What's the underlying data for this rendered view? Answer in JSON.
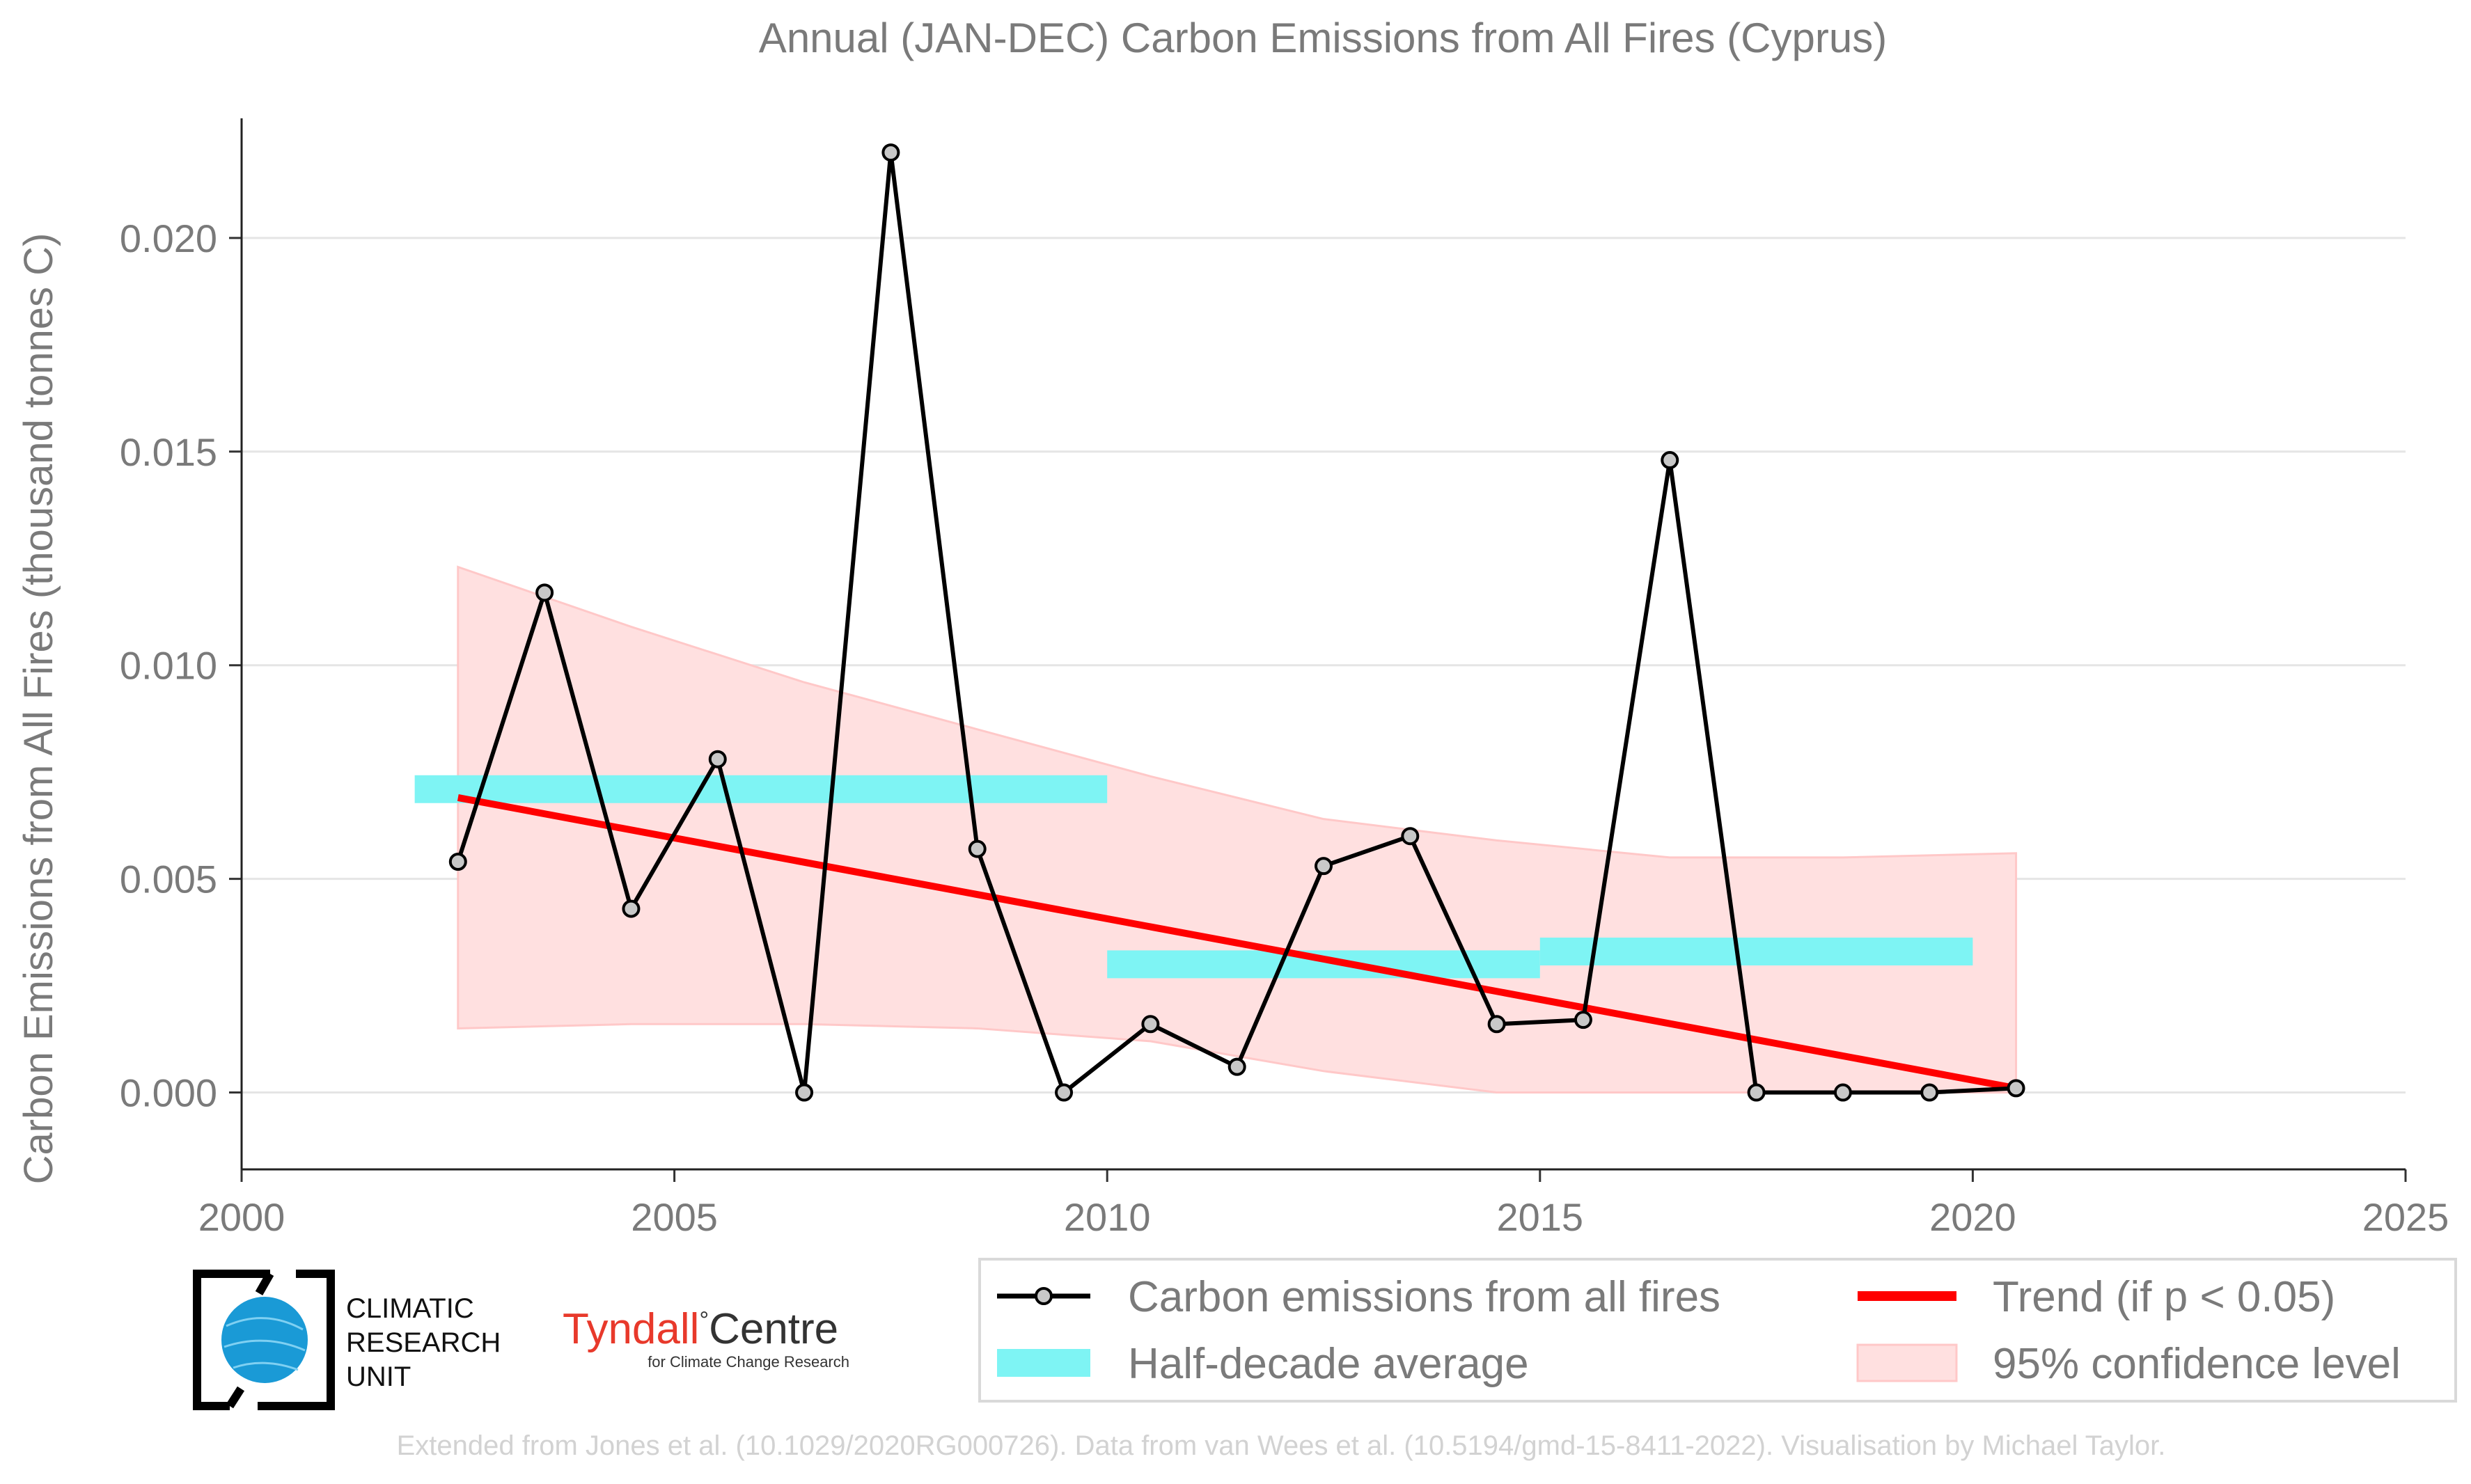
{
  "chart_data": {
    "type": "line",
    "title": "Annual (JAN-DEC) Carbon Emissions from All Fires (Cyprus)",
    "xlabel": "",
    "ylabel": "Carbon Emissions from All Fires (thousand tonnes C)",
    "xlim": [
      2000,
      2025
    ],
    "ylim": [
      -0.0018,
      0.0228
    ],
    "x_ticks": [
      2000,
      2005,
      2010,
      2015,
      2020,
      2025
    ],
    "y_ticks": [
      0.0,
      0.005,
      0.01,
      0.015,
      0.02
    ],
    "y_tick_labels": [
      "0.000",
      "0.005",
      "0.010",
      "0.015",
      "0.020"
    ],
    "grid": "horizontal",
    "legend_position": "bottom-right",
    "series": [
      {
        "name": "Carbon emissions from all fires",
        "kind": "line+markers",
        "color": "#000000",
        "marker_fill": "#c8c8c8",
        "x": [
          2002.5,
          2003.5,
          2004.5,
          2005.5,
          2006.5,
          2007.5,
          2008.5,
          2009.5,
          2010.5,
          2011.5,
          2012.5,
          2013.5,
          2014.5,
          2015.5,
          2016.5,
          2017.5,
          2018.5,
          2019.5,
          2020.5
        ],
        "y": [
          0.0054,
          0.0117,
          0.0043,
          0.0078,
          0.0,
          0.022,
          0.0057,
          0.0,
          0.0016,
          0.0006,
          0.0053,
          0.006,
          0.0016,
          0.0017,
          0.0148,
          0.0,
          0.0,
          0.0,
          0.0001
        ]
      },
      {
        "name": "Half-decade average",
        "kind": "bars",
        "color": "#7ef4f4",
        "segments": [
          {
            "x_start": 2002,
            "x_end": 2010,
            "y": 0.0071
          },
          {
            "x_start": 2010,
            "x_end": 2015,
            "y": 0.003
          },
          {
            "x_start": 2015,
            "x_end": 2020,
            "y": 0.0033
          }
        ]
      },
      {
        "name": "Trend (if p < 0.05)",
        "kind": "line",
        "color": "#ff0000",
        "x": [
          2002.5,
          2020.5
        ],
        "y": [
          0.0069,
          0.0001
        ]
      },
      {
        "name": "95% confidence level",
        "kind": "band",
        "color": "#ffe0e0",
        "x": [
          2002.5,
          2004.5,
          2006.5,
          2008.5,
          2010.5,
          2012.5,
          2014.5,
          2016.5,
          2018.5,
          2020.5
        ],
        "upper": [
          0.0123,
          0.0109,
          0.0096,
          0.0085,
          0.0074,
          0.0064,
          0.0059,
          0.0055,
          0.0055,
          0.0056
        ],
        "lower": [
          0.0015,
          0.0016,
          0.0016,
          0.0015,
          0.0012,
          0.0005,
          0.0,
          0.0,
          0.0,
          0.0
        ]
      }
    ]
  },
  "legend": {
    "items": [
      {
        "label": "Carbon emissions from all fires",
        "symbol": "line-marker"
      },
      {
        "label": "Trend (if p < 0.05)",
        "symbol": "red-line"
      },
      {
        "label": "Half-decade average",
        "symbol": "cyan-bar"
      },
      {
        "label": "95% confidence level",
        "symbol": "pink-band"
      }
    ]
  },
  "logos": {
    "cru": [
      "CLIMATIC",
      "RESEARCH",
      "UNIT"
    ],
    "tyndall_main": "Tyndall",
    "tyndall_main2": "Centre",
    "tyndall_sub": "for Climate Change Research"
  },
  "credit": "Extended from Jones et al. (10.1029/2020RG000726). Data from van Wees et al. (10.5194/gmd-15-8411-2022). Visualisation by Michael Taylor.",
  "colors": {
    "trend": "#ff0000",
    "half_decade": "#7ef4f4",
    "confidence": "#ffe0e0",
    "text": "#7a7a7a"
  }
}
